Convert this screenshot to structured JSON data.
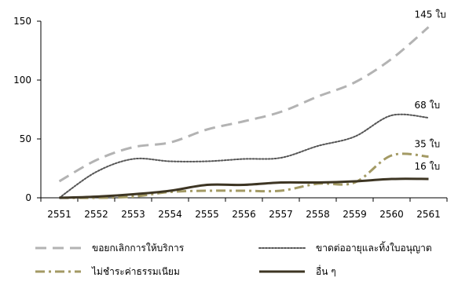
{
  "chart_data": {
    "type": "line",
    "title": "",
    "xlabel": "",
    "ylabel": "",
    "categories": [
      "2551",
      "2552",
      "2553",
      "2554",
      "2555",
      "2556",
      "2557",
      "2558",
      "2559",
      "2560",
      "2561"
    ],
    "ylim": [
      0,
      150
    ],
    "yticks": [
      0,
      50,
      100,
      150
    ],
    "grid": false,
    "legend_position": "bottom",
    "series": [
      {
        "name": "ขอยกเลิกการให้บริการ",
        "values": [
          14,
          32,
          43,
          47,
          58,
          65,
          73,
          86,
          98,
          118,
          145
        ],
        "color": "#b3b3b3",
        "style": "dashed",
        "end_label": "145 ใบ"
      },
      {
        "name": "ขาดต่ออายุและทิ้งใบอนุญาต",
        "values": [
          0,
          22,
          33,
          31,
          31,
          33,
          34,
          44,
          52,
          70,
          68
        ],
        "color": "#555555",
        "style": "dotted",
        "end_label": "68 ใบ"
      },
      {
        "name": "ไม่ชำระค่าธรรมเนียม",
        "values": [
          0,
          0,
          1,
          5,
          6,
          6,
          6,
          12,
          13,
          36,
          35
        ],
        "color": "#a39a64",
        "style": "dashdot",
        "end_label": "35 ใบ"
      },
      {
        "name": "อื่น ๆ",
        "values": [
          0,
          1,
          3,
          6,
          11,
          11,
          13,
          13,
          14,
          16,
          16
        ],
        "color": "#3d3523",
        "style": "solid",
        "end_label": "16 ใบ"
      }
    ]
  }
}
